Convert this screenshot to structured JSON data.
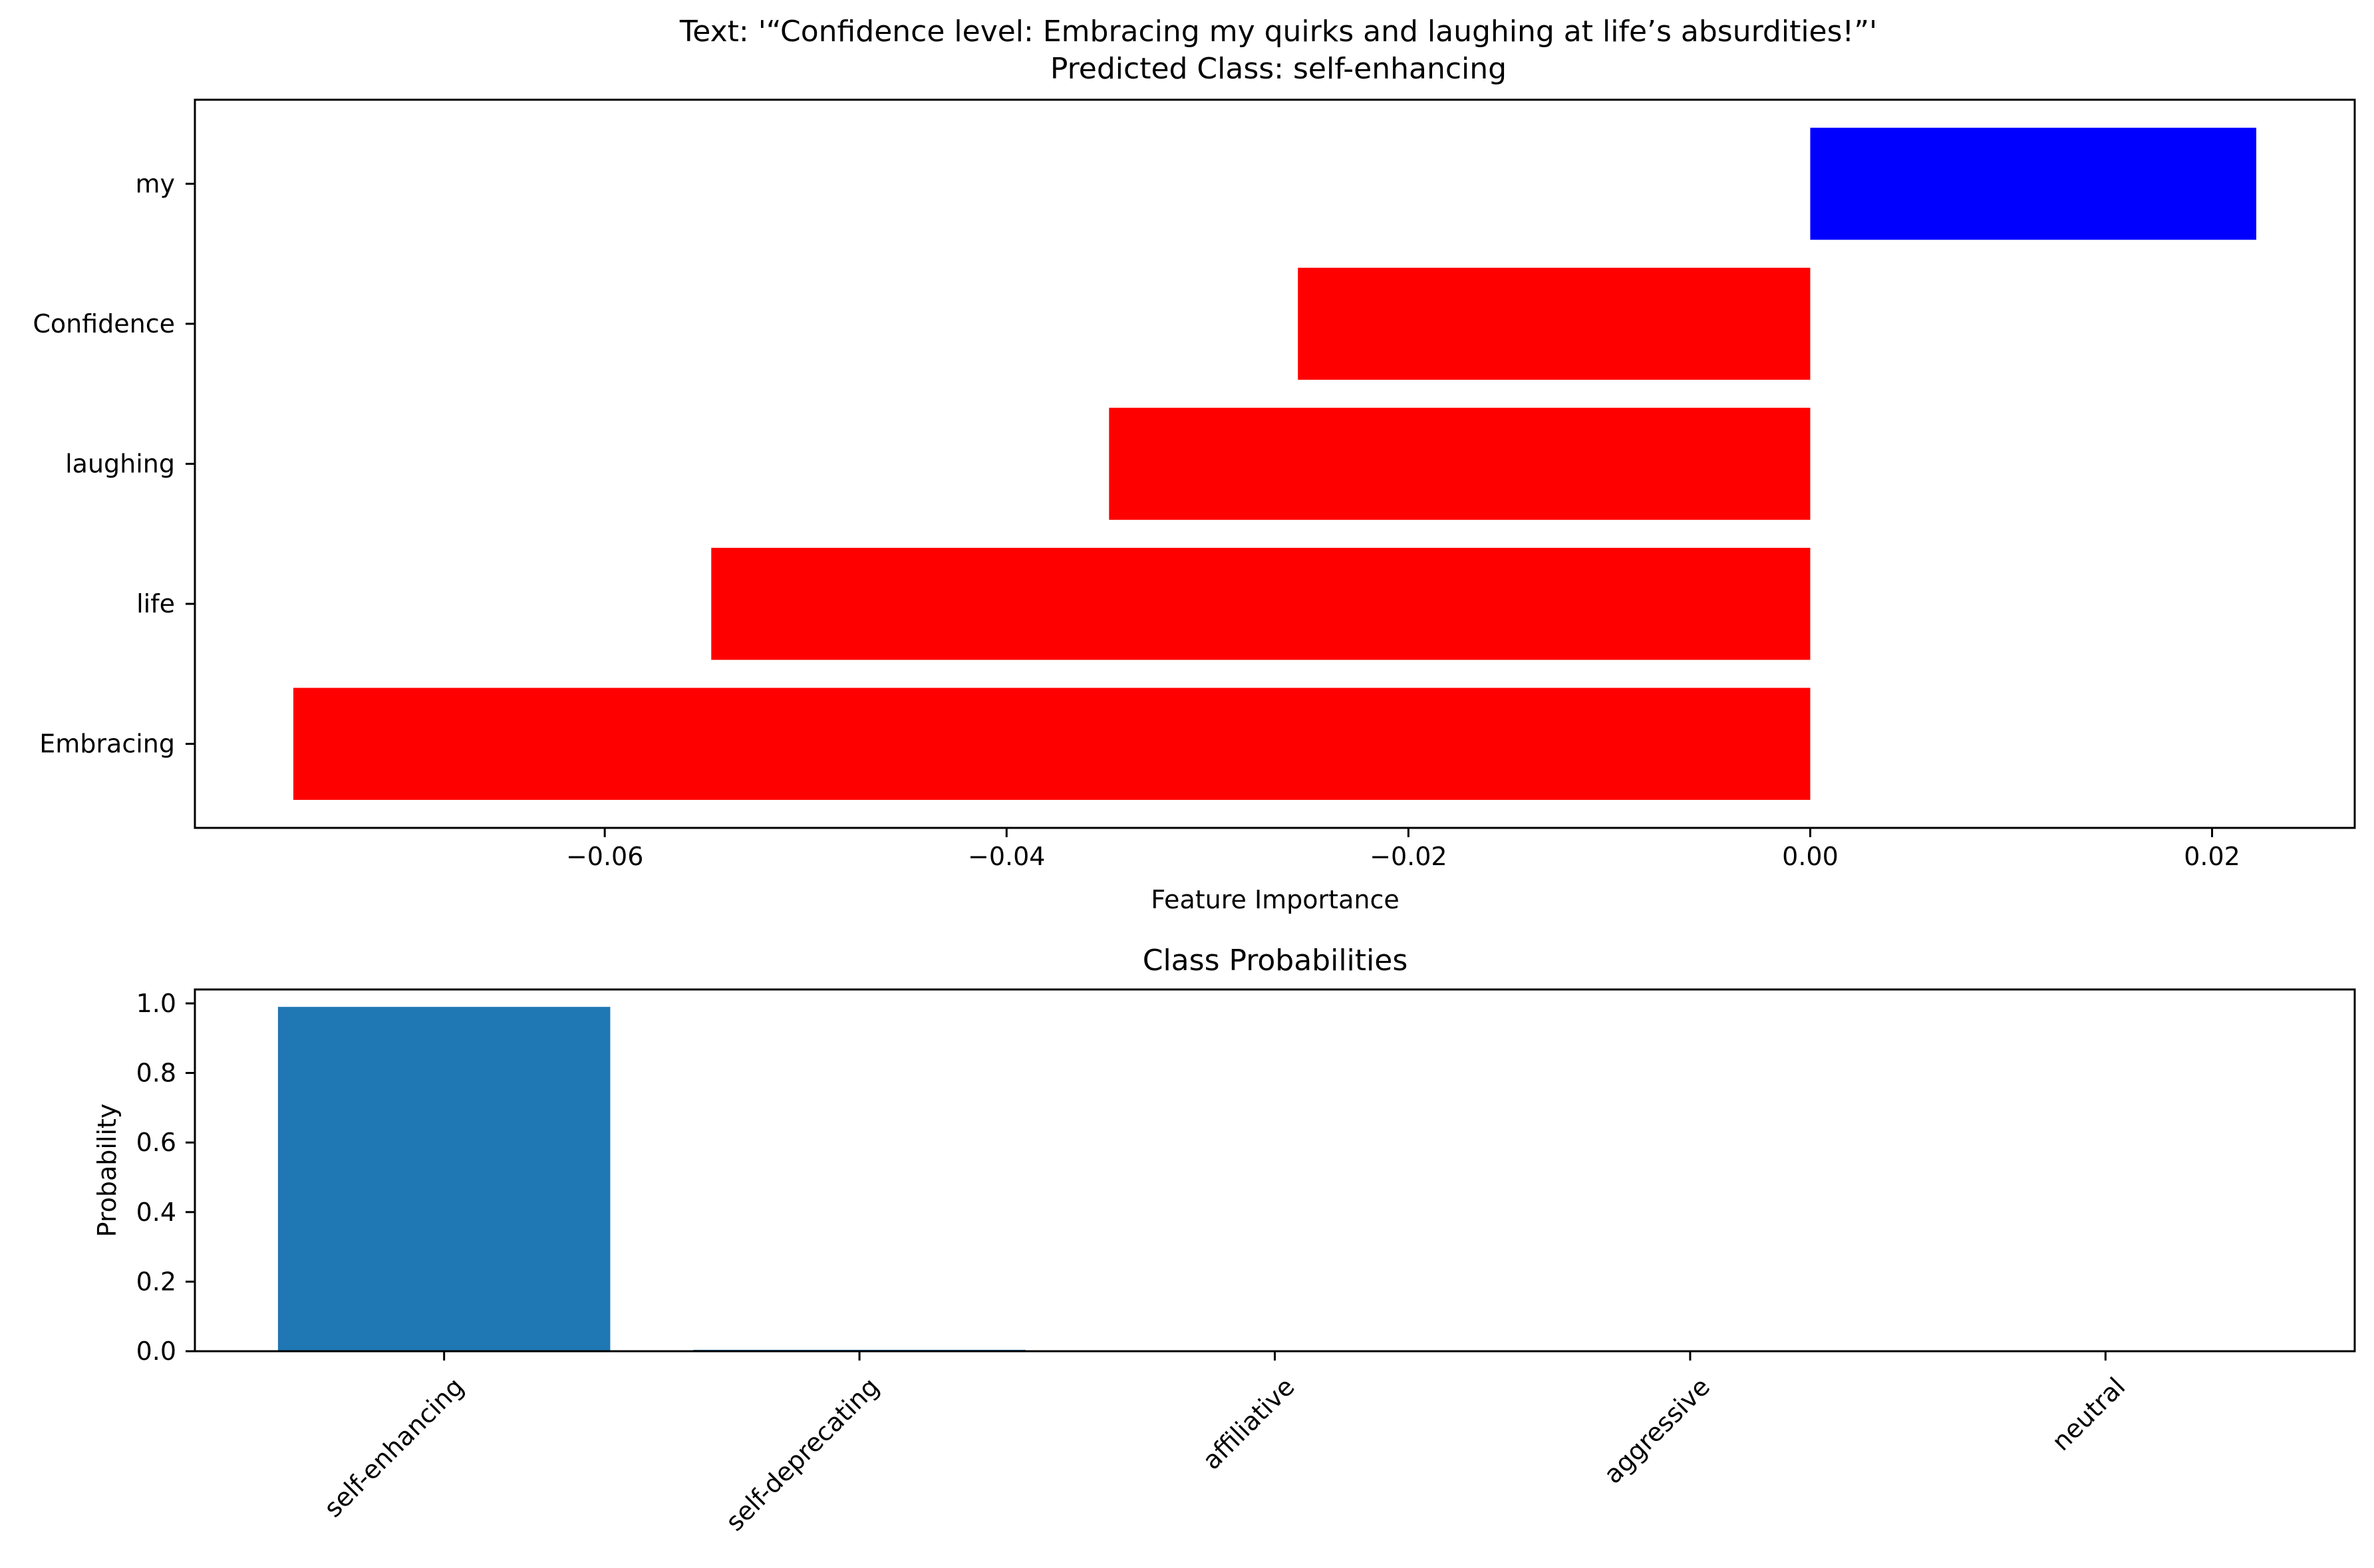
{
  "figure": {
    "title_line1": "Text: '“Confidence level: Embracing my quirks and laughing at life’s absurdities!”'",
    "title_line2": "Predicted Class: self-enhancing"
  },
  "chart_data": [
    {
      "type": "bar",
      "orientation": "horizontal",
      "title": "",
      "xlabel": "Feature Importance",
      "ylabel": "",
      "categories": [
        "my",
        "Confidence",
        "laughing",
        "life",
        "Embracing"
      ],
      "values": [
        0.0222,
        -0.0255,
        -0.0349,
        -0.0547,
        -0.0755
      ],
      "bar_colors": [
        "#0000ff",
        "#ff0000",
        "#ff0000",
        "#ff0000",
        "#ff0000"
      ],
      "xlim": [
        -0.0804,
        0.0271
      ],
      "xticks": [
        -0.06,
        -0.04,
        -0.02,
        0.0,
        0.02
      ],
      "xtick_labels": [
        "−0.06",
        "−0.04",
        "−0.02",
        "0.00",
        "0.02"
      ],
      "grid": false
    },
    {
      "type": "bar",
      "title": "Class Probabilities",
      "xlabel": "",
      "ylabel": "Probability",
      "categories": [
        "self-enhancing",
        "self-deprecating",
        "affiliative",
        "aggressive",
        "neutral"
      ],
      "values": [
        0.99,
        0.004,
        0.0005,
        0.0003,
        0.0002
      ],
      "bar_color": "#1f77b4",
      "ylim": [
        0,
        1.04
      ],
      "yticks": [
        0.0,
        0.2,
        0.4,
        0.6,
        0.8,
        1.0
      ],
      "ytick_labels": [
        "0.0",
        "0.2",
        "0.4",
        "0.6",
        "0.8",
        "1.0"
      ],
      "tick_label_rotation": 45,
      "grid": false
    }
  ]
}
